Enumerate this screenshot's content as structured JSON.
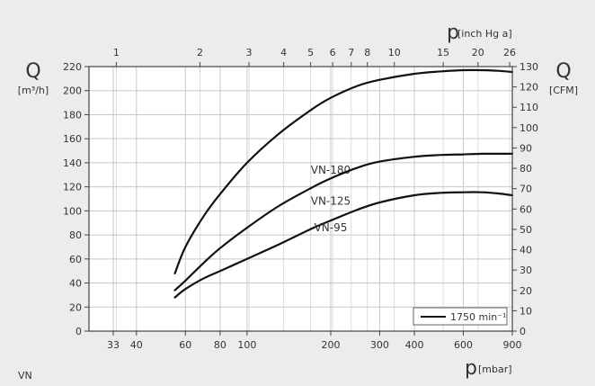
{
  "chart_data": {
    "type": "line",
    "title": "",
    "x_axis_bottom": {
      "symbol": "p",
      "unit": "[mbar]",
      "scale": "log",
      "range": [
        27,
        900
      ],
      "ticks": [
        33,
        40,
        60,
        80,
        100,
        200,
        300,
        400,
        600,
        900
      ],
      "tick_labels": [
        "33",
        "40",
        "60",
        "80",
        "100",
        "200",
        "300",
        "400",
        "600",
        "900"
      ]
    },
    "x_axis_top": {
      "symbol": "p",
      "unit": "[inch Hg a]",
      "scale": "log",
      "ticks": [
        1,
        2,
        3,
        4,
        5,
        6,
        7,
        8,
        10,
        15,
        20,
        26
      ],
      "tick_labels": [
        "1",
        "2",
        "3",
        "4",
        "5",
        "6",
        "7",
        "8",
        "10",
        "15",
        "20",
        "26"
      ]
    },
    "y_axis_left": {
      "symbol": "Q",
      "unit": "[m³/h]",
      "range": [
        0,
        220
      ],
      "ticks": [
        0,
        20,
        40,
        60,
        80,
        100,
        120,
        140,
        160,
        180,
        200,
        220
      ],
      "tick_labels": [
        "0",
        "20",
        "40",
        "60",
        "80",
        "100",
        "120",
        "140",
        "160",
        "180",
        "200",
        "220"
      ]
    },
    "y_axis_right": {
      "symbol": "Q",
      "unit": "[CFM]",
      "range": [
        0,
        130
      ],
      "ticks": [
        0,
        10,
        20,
        30,
        40,
        50,
        60,
        70,
        80,
        90,
        100,
        110,
        120,
        130
      ],
      "tick_labels": [
        "0",
        "10",
        "20",
        "30",
        "40",
        "50",
        "60",
        "70",
        "80",
        "90",
        "100",
        "110",
        "120",
        "130"
      ]
    },
    "series": [
      {
        "name": "VN-180",
        "label_at": [
          200,
          134
        ],
        "x": [
          55,
          60,
          70,
          80,
          100,
          130,
          170,
          200,
          250,
          300,
          400,
          500,
          600,
          700,
          800,
          900
        ],
        "y": [
          48,
          70,
          96,
          114,
          140,
          164,
          184,
          194,
          204,
          209,
          214,
          216,
          217,
          217,
          216.5,
          215.5
        ]
      },
      {
        "name": "VN-125",
        "label_at": [
          200,
          108
        ],
        "x": [
          55,
          60,
          70,
          80,
          100,
          130,
          170,
          200,
          250,
          300,
          400,
          500,
          600,
          700,
          800,
          900
        ],
        "y": [
          34,
          42,
          57,
          69,
          86,
          104,
          119,
          127,
          136,
          141,
          145,
          146.5,
          147,
          147.5,
          147.5,
          147.5
        ]
      },
      {
        "name": "VN-95",
        "label_at": [
          200,
          86
        ],
        "x": [
          55,
          60,
          70,
          80,
          100,
          130,
          170,
          200,
          250,
          300,
          400,
          500,
          600,
          700,
          800,
          900
        ],
        "y": [
          28,
          35,
          44,
          50,
          60,
          72,
          85,
          92,
          101,
          107,
          113,
          115,
          115.5,
          115.5,
          114.5,
          113
        ]
      }
    ],
    "legend": {
      "text": "1750 min⁻¹",
      "position": "bottom-right"
    },
    "grid": true,
    "line_color": "#111111"
  },
  "footer_label": "VN"
}
